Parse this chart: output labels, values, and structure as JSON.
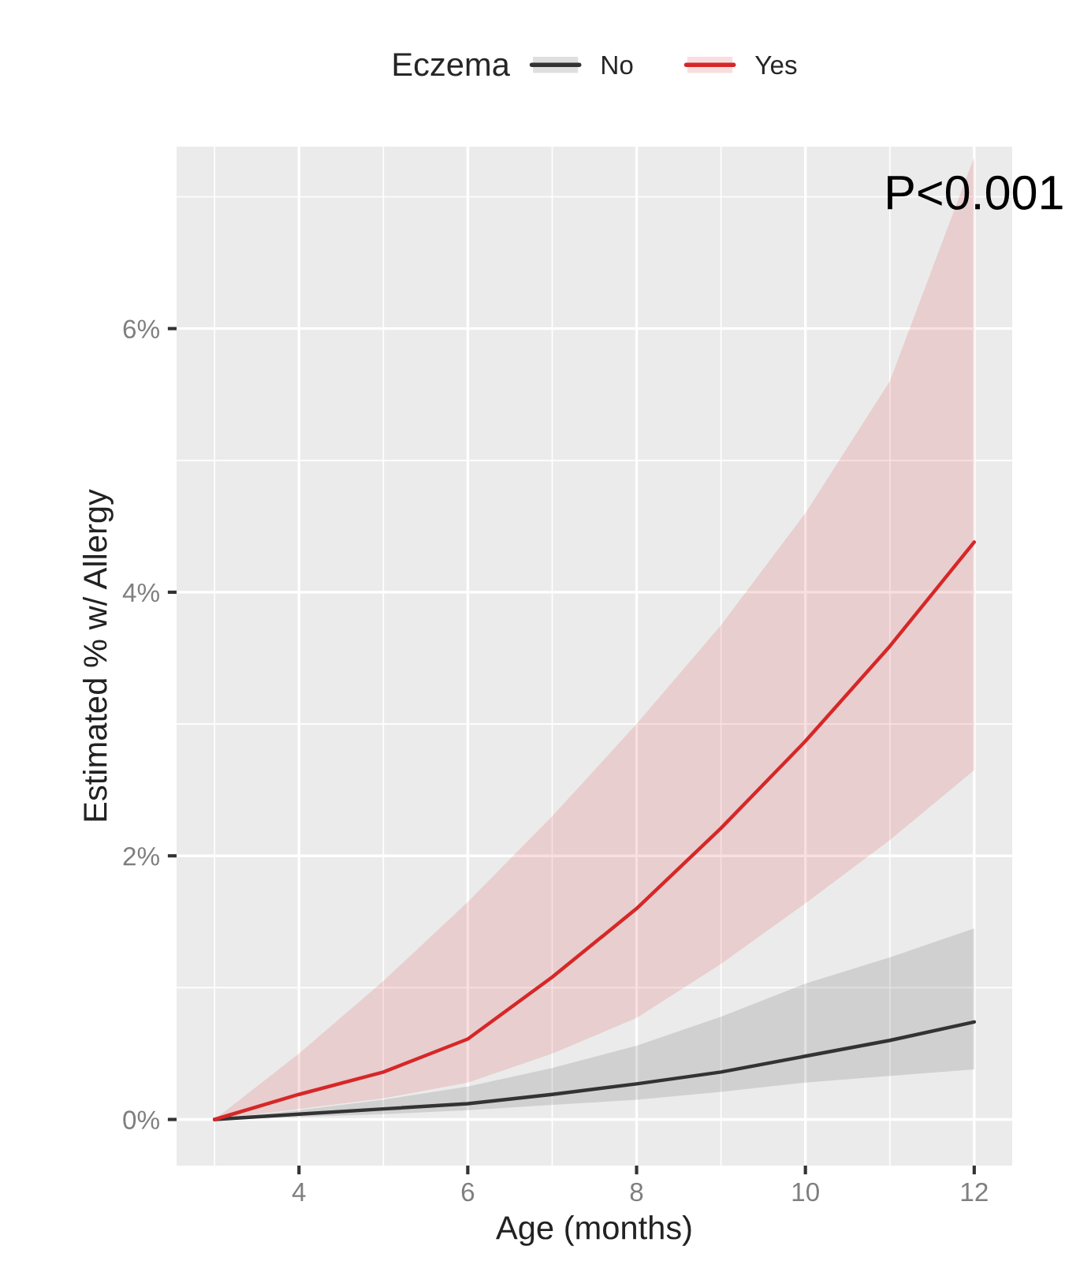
{
  "chart_data": {
    "type": "line",
    "xlabel": "Age (months)",
    "ylabel": "Estimated % w/ Allergy",
    "legend_title": "Eczema",
    "legend": "top",
    "x": [
      3,
      4,
      5,
      6,
      7,
      8,
      9,
      10,
      11,
      12
    ],
    "series": [
      {
        "name": "No",
        "color": "#333333",
        "values": [
          0,
          0.04,
          0.08,
          0.12,
          0.19,
          0.27,
          0.36,
          0.48,
          0.6,
          0.74
        ],
        "lower": [
          0,
          0.02,
          0.04,
          0.07,
          0.11,
          0.15,
          0.21,
          0.28,
          0.33,
          0.38
        ],
        "upper": [
          0,
          0.07,
          0.15,
          0.25,
          0.39,
          0.56,
          0.78,
          1.03,
          1.23,
          1.45
        ]
      },
      {
        "name": "Yes",
        "color": "#d62728",
        "values": [
          0,
          0.19,
          0.36,
          0.61,
          1.08,
          1.6,
          2.21,
          2.87,
          3.59,
          4.38
        ],
        "lower": [
          0,
          0.08,
          0.16,
          0.28,
          0.5,
          0.77,
          1.18,
          1.64,
          2.12,
          2.65
        ],
        "upper": [
          0,
          0.5,
          1.05,
          1.65,
          2.3,
          3.0,
          3.75,
          4.6,
          5.6,
          7.3
        ]
      }
    ],
    "xlim": [
      2.55,
      12.45
    ],
    "ylim": [
      -0.35,
      7.38
    ],
    "xticks": [
      4,
      6,
      8,
      10,
      12
    ],
    "yticks": [
      {
        "value": 0,
        "label": "0%"
      },
      {
        "value": 2,
        "label": "2%"
      },
      {
        "value": 4,
        "label": "4%"
      },
      {
        "value": 6,
        "label": "6%"
      }
    ],
    "grid": true,
    "annotations": [
      {
        "text": "P<0.001",
        "x": 12,
        "y": 7.0
      }
    ]
  }
}
